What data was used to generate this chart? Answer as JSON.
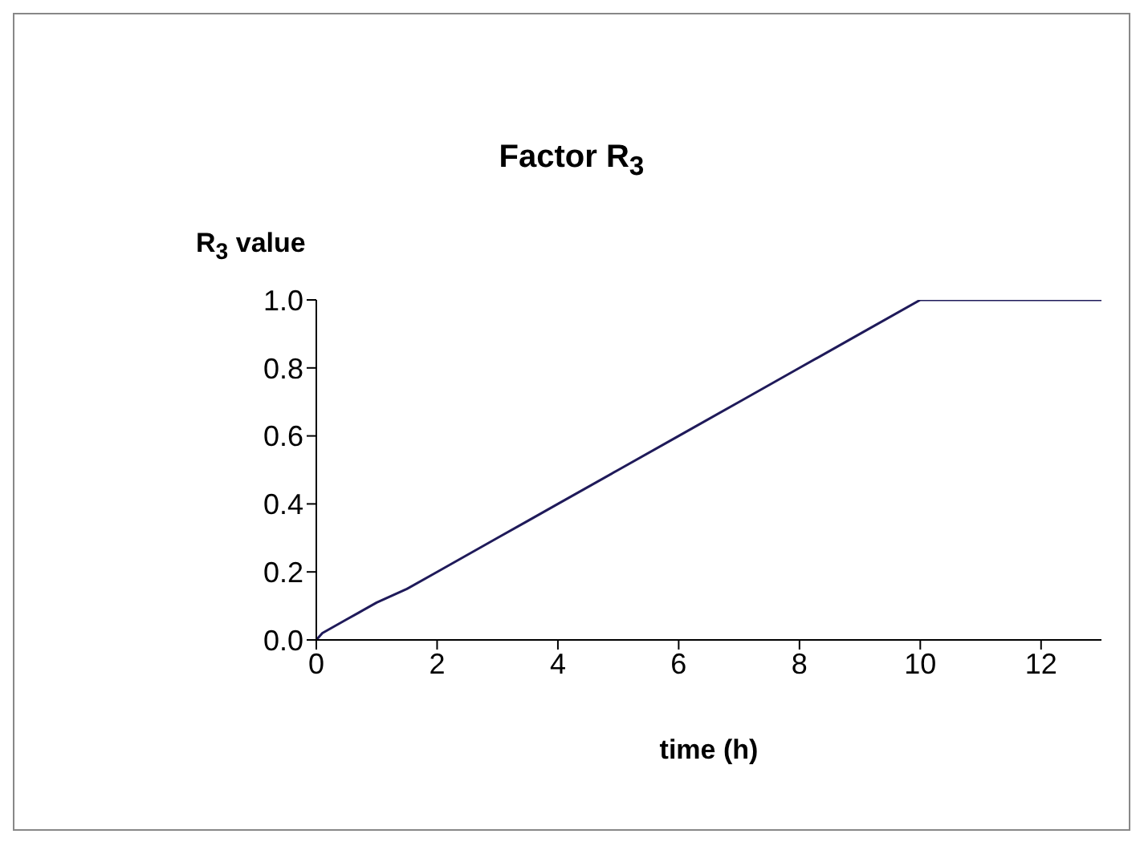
{
  "chart_data": {
    "type": "line",
    "title": "Factor R$_{3}$",
    "xlabel": "time (h)",
    "ylabel": "R$_{3}$ value",
    "x": [
      0,
      0.1,
      0.3,
      0.5,
      0.7,
      1,
      1.5,
      2,
      3,
      3.5,
      4,
      5,
      6,
      7,
      8,
      9,
      10,
      11,
      12,
      13
    ],
    "series": [
      {
        "color": "#1f1a5a",
        "values": [
          0,
          0.02,
          0.04,
          0.06,
          0.08,
          0.11,
          0.15,
          0.2,
          0.3,
          0.35,
          0.4,
          0.5,
          0.6,
          0.7,
          0.8,
          0.9,
          1,
          1,
          1,
          1
        ]
      }
    ],
    "xlim": [
      0,
      13
    ],
    "xticks": [
      0,
      2,
      4,
      6,
      8,
      10,
      12
    ],
    "ylim": [
      0,
      1
    ],
    "yticks": [
      {
        "value": 0,
        "label": "0.0"
      },
      {
        "value": 0.2,
        "label": "0.2"
      },
      {
        "value": 0.4,
        "label": "0.4"
      },
      {
        "value": 0.6,
        "label": "0.6"
      },
      {
        "value": 0.8,
        "label": "0.8"
      },
      {
        "value": 1,
        "label": "1.0"
      }
    ],
    "grid": false,
    "legend": false,
    "marker": "none",
    "line_style": "solid"
  }
}
